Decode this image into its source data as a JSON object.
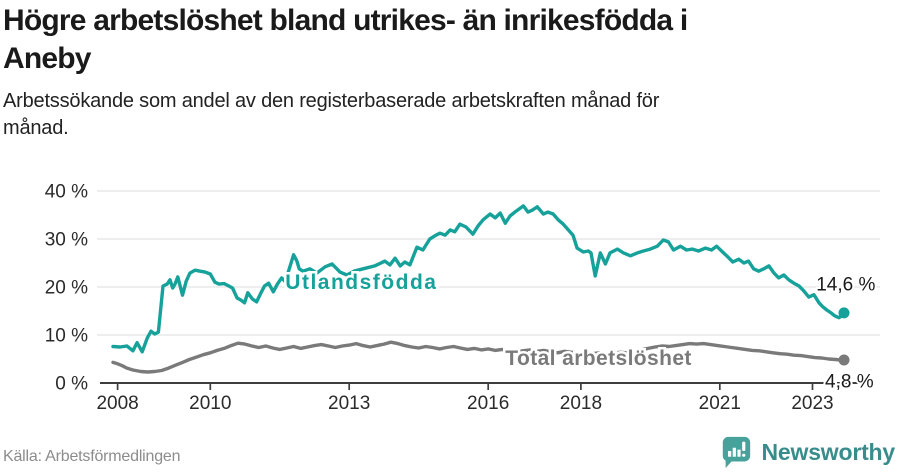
{
  "header": {
    "title_line1": "Högre arbetslöshet bland utrikes- än inrikesfödda i",
    "title_line2": "Aneby",
    "subtitle_line1": "Arbetssökande som andel av den registerbaserade arbetskraften månad för",
    "subtitle_line2": "månad."
  },
  "footer": {
    "source": "Källa: Arbetsförmedlingen",
    "brand": "Newsworthy",
    "brand_color": "#388d8c",
    "logo_icon_color": "#46a29a"
  },
  "chart_data": {
    "type": "line",
    "grid": true,
    "axis_color": "#3d3d3d",
    "grid_color": "#e4e4e4",
    "tick_label_color": "#2b2b2b",
    "end_label_color": "#1a1a1a",
    "x_axis": {
      "ticks": [
        2008,
        2010,
        2013,
        2016,
        2018,
        2021,
        2023
      ],
      "range": [
        2007.62,
        2024.0
      ]
    },
    "y_axis": {
      "ticks": [
        0,
        10,
        20,
        30,
        40
      ],
      "tick_suffix": " %",
      "range": [
        0,
        40
      ]
    },
    "series": [
      {
        "id": "utlandsfodda",
        "name": "Utlandsfödda",
        "color": "#16a29a",
        "end_value": 14.6,
        "end_label": "14,6 %",
        "label_pos": [
          2011.62,
          19.6
        ],
        "label_spacing": 1.5,
        "end_label_pos": [
          2023.08,
          19.3
        ],
        "points": [
          [
            2007.9,
            7.6
          ],
          [
            2008.05,
            7.5
          ],
          [
            2008.2,
            7.7
          ],
          [
            2008.33,
            6.7
          ],
          [
            2008.42,
            8.4
          ],
          [
            2008.53,
            6.5
          ],
          [
            2008.64,
            9.4
          ],
          [
            2008.72,
            10.8
          ],
          [
            2008.8,
            10.2
          ],
          [
            2008.88,
            10.6
          ],
          [
            2008.98,
            20.2
          ],
          [
            2009.07,
            20.6
          ],
          [
            2009.13,
            21.5
          ],
          [
            2009.19,
            19.8
          ],
          [
            2009.24,
            20.6
          ],
          [
            2009.3,
            22.1
          ],
          [
            2009.4,
            18.3
          ],
          [
            2009.48,
            21.2
          ],
          [
            2009.56,
            22.9
          ],
          [
            2009.67,
            23.5
          ],
          [
            2009.78,
            23.3
          ],
          [
            2009.89,
            23.1
          ],
          [
            2010.0,
            22.7
          ],
          [
            2010.1,
            21.0
          ],
          [
            2010.19,
            20.6
          ],
          [
            2010.3,
            20.7
          ],
          [
            2010.4,
            20.2
          ],
          [
            2010.48,
            19.8
          ],
          [
            2010.58,
            17.7
          ],
          [
            2010.66,
            17.3
          ],
          [
            2010.74,
            16.7
          ],
          [
            2010.81,
            18.8
          ],
          [
            2010.91,
            17.5
          ],
          [
            2011.0,
            16.9
          ],
          [
            2011.08,
            18.5
          ],
          [
            2011.17,
            20.2
          ],
          [
            2011.26,
            20.8
          ],
          [
            2011.36,
            19.0
          ],
          [
            2011.45,
            20.6
          ],
          [
            2011.54,
            21.9
          ],
          [
            2011.61,
            21.2
          ],
          [
            2011.69,
            23.3
          ],
          [
            2011.8,
            26.7
          ],
          [
            2011.87,
            25.4
          ],
          [
            2011.92,
            23.8
          ],
          [
            2012.0,
            23.3
          ],
          [
            2012.15,
            23.8
          ],
          [
            2012.3,
            22.9
          ],
          [
            2012.48,
            24.2
          ],
          [
            2012.63,
            24.8
          ],
          [
            2012.8,
            23.1
          ],
          [
            2012.95,
            22.5
          ],
          [
            2013.1,
            23.3
          ],
          [
            2013.3,
            23.8
          ],
          [
            2013.55,
            24.4
          ],
          [
            2013.77,
            25.4
          ],
          [
            2013.88,
            24.6
          ],
          [
            2013.99,
            26.0
          ],
          [
            2014.1,
            24.4
          ],
          [
            2014.2,
            25.2
          ],
          [
            2014.31,
            24.6
          ],
          [
            2014.46,
            28.3
          ],
          [
            2014.59,
            27.7
          ],
          [
            2014.74,
            30.0
          ],
          [
            2014.87,
            30.8
          ],
          [
            2014.96,
            31.2
          ],
          [
            2015.07,
            30.8
          ],
          [
            2015.18,
            31.9
          ],
          [
            2015.28,
            31.5
          ],
          [
            2015.39,
            33.1
          ],
          [
            2015.52,
            32.5
          ],
          [
            2015.67,
            31.0
          ],
          [
            2015.78,
            32.7
          ],
          [
            2015.89,
            34.0
          ],
          [
            2016.04,
            35.2
          ],
          [
            2016.15,
            34.4
          ],
          [
            2016.26,
            35.4
          ],
          [
            2016.37,
            33.3
          ],
          [
            2016.47,
            34.8
          ],
          [
            2016.6,
            35.8
          ],
          [
            2016.76,
            36.9
          ],
          [
            2016.86,
            35.6
          ],
          [
            2016.95,
            36.0
          ],
          [
            2017.06,
            36.7
          ],
          [
            2017.19,
            35.2
          ],
          [
            2017.29,
            35.6
          ],
          [
            2017.4,
            35.2
          ],
          [
            2017.51,
            34.0
          ],
          [
            2017.62,
            33.1
          ],
          [
            2017.73,
            31.9
          ],
          [
            2017.83,
            30.8
          ],
          [
            2017.92,
            28.1
          ],
          [
            2018.05,
            27.3
          ],
          [
            2018.16,
            27.5
          ],
          [
            2018.22,
            27.1
          ],
          [
            2018.31,
            22.3
          ],
          [
            2018.42,
            27.1
          ],
          [
            2018.53,
            24.8
          ],
          [
            2018.63,
            27.1
          ],
          [
            2018.79,
            27.9
          ],
          [
            2018.92,
            27.1
          ],
          [
            2019.07,
            26.5
          ],
          [
            2019.22,
            27.1
          ],
          [
            2019.35,
            27.5
          ],
          [
            2019.5,
            27.9
          ],
          [
            2019.65,
            28.5
          ],
          [
            2019.78,
            29.8
          ],
          [
            2019.89,
            29.4
          ],
          [
            2020.0,
            27.7
          ],
          [
            2020.15,
            28.5
          ],
          [
            2020.28,
            27.7
          ],
          [
            2020.41,
            27.9
          ],
          [
            2020.54,
            27.5
          ],
          [
            2020.69,
            28.1
          ],
          [
            2020.82,
            27.7
          ],
          [
            2020.93,
            28.5
          ],
          [
            2021.06,
            27.3
          ],
          [
            2021.17,
            26.3
          ],
          [
            2021.28,
            25.2
          ],
          [
            2021.41,
            25.8
          ],
          [
            2021.52,
            25.0
          ],
          [
            2021.62,
            25.4
          ],
          [
            2021.73,
            23.8
          ],
          [
            2021.84,
            23.3
          ],
          [
            2021.95,
            23.8
          ],
          [
            2022.06,
            24.4
          ],
          [
            2022.17,
            22.9
          ],
          [
            2022.27,
            21.9
          ],
          [
            2022.38,
            22.5
          ],
          [
            2022.49,
            21.5
          ],
          [
            2022.6,
            20.8
          ],
          [
            2022.71,
            20.2
          ],
          [
            2022.81,
            19.2
          ],
          [
            2022.92,
            17.9
          ],
          [
            2023.03,
            18.4
          ],
          [
            2023.14,
            16.7
          ],
          [
            2023.22,
            15.9
          ],
          [
            2023.31,
            15.2
          ],
          [
            2023.4,
            14.6
          ],
          [
            2023.48,
            14.0
          ],
          [
            2023.57,
            13.6
          ],
          [
            2023.63,
            14.0
          ],
          [
            2023.68,
            14.6
          ]
        ]
      },
      {
        "id": "total",
        "name": "Total arbetslöshet",
        "color": "#7a7a7a",
        "end_value": 4.8,
        "end_label": "4,8 %",
        "label_pos": [
          2016.37,
          3.7
        ],
        "label_spacing": 0.4,
        "end_label_pos": [
          2023.27,
          -0.9
        ],
        "points": [
          [
            2007.9,
            4.3
          ],
          [
            2008.0,
            4.0
          ],
          [
            2008.1,
            3.6
          ],
          [
            2008.2,
            3.1
          ],
          [
            2008.33,
            2.7
          ],
          [
            2008.5,
            2.4
          ],
          [
            2008.65,
            2.3
          ],
          [
            2008.8,
            2.4
          ],
          [
            2008.95,
            2.6
          ],
          [
            2009.1,
            3.1
          ],
          [
            2009.25,
            3.7
          ],
          [
            2009.4,
            4.3
          ],
          [
            2009.55,
            4.9
          ],
          [
            2009.7,
            5.4
          ],
          [
            2009.85,
            5.9
          ],
          [
            2010.0,
            6.3
          ],
          [
            2010.15,
            6.8
          ],
          [
            2010.3,
            7.2
          ],
          [
            2010.45,
            7.8
          ],
          [
            2010.6,
            8.3
          ],
          [
            2010.75,
            8.1
          ],
          [
            2010.9,
            7.7
          ],
          [
            2011.05,
            7.4
          ],
          [
            2011.2,
            7.7
          ],
          [
            2011.35,
            7.3
          ],
          [
            2011.5,
            7.0
          ],
          [
            2011.65,
            7.3
          ],
          [
            2011.8,
            7.6
          ],
          [
            2011.95,
            7.2
          ],
          [
            2012.1,
            7.5
          ],
          [
            2012.25,
            7.8
          ],
          [
            2012.4,
            8.0
          ],
          [
            2012.55,
            7.7
          ],
          [
            2012.7,
            7.4
          ],
          [
            2012.85,
            7.7
          ],
          [
            2013.0,
            7.9
          ],
          [
            2013.15,
            8.2
          ],
          [
            2013.3,
            7.8
          ],
          [
            2013.45,
            7.5
          ],
          [
            2013.6,
            7.8
          ],
          [
            2013.75,
            8.1
          ],
          [
            2013.9,
            8.5
          ],
          [
            2014.05,
            8.2
          ],
          [
            2014.2,
            7.8
          ],
          [
            2014.35,
            7.5
          ],
          [
            2014.5,
            7.3
          ],
          [
            2014.65,
            7.6
          ],
          [
            2014.8,
            7.4
          ],
          [
            2014.95,
            7.1
          ],
          [
            2015.1,
            7.4
          ],
          [
            2015.25,
            7.6
          ],
          [
            2015.4,
            7.3
          ],
          [
            2015.55,
            7.0
          ],
          [
            2015.7,
            7.2
          ],
          [
            2015.85,
            6.9
          ],
          [
            2016.0,
            7.1
          ],
          [
            2016.15,
            6.8
          ],
          [
            2016.3,
            7.0
          ],
          [
            2016.45,
            6.7
          ],
          [
            2016.6,
            6.5
          ],
          [
            2016.75,
            6.7
          ],
          [
            2016.9,
            6.9
          ],
          [
            2017.05,
            6.6
          ],
          [
            2017.2,
            6.8
          ],
          [
            2017.35,
            6.5
          ],
          [
            2017.5,
            6.3
          ],
          [
            2017.65,
            6.6
          ],
          [
            2017.8,
            6.4
          ],
          [
            2017.95,
            6.2
          ],
          [
            2018.1,
            6.4
          ],
          [
            2018.25,
            6.1
          ],
          [
            2018.4,
            6.3
          ],
          [
            2018.55,
            6.0
          ],
          [
            2018.7,
            6.2
          ],
          [
            2018.85,
            6.4
          ],
          [
            2019.0,
            6.3
          ],
          [
            2019.15,
            6.6
          ],
          [
            2019.3,
            6.9
          ],
          [
            2019.45,
            7.2
          ],
          [
            2019.6,
            7.5
          ],
          [
            2019.75,
            7.7
          ],
          [
            2019.9,
            7.6
          ],
          [
            2020.05,
            7.8
          ],
          [
            2020.2,
            8.0
          ],
          [
            2020.35,
            8.2
          ],
          [
            2020.5,
            8.1
          ],
          [
            2020.65,
            8.2
          ],
          [
            2020.8,
            8.0
          ],
          [
            2020.95,
            7.8
          ],
          [
            2021.1,
            7.6
          ],
          [
            2021.25,
            7.4
          ],
          [
            2021.4,
            7.2
          ],
          [
            2021.55,
            7.0
          ],
          [
            2021.7,
            6.8
          ],
          [
            2021.85,
            6.7
          ],
          [
            2022.0,
            6.5
          ],
          [
            2022.15,
            6.3
          ],
          [
            2022.3,
            6.1
          ],
          [
            2022.45,
            6.0
          ],
          [
            2022.6,
            5.8
          ],
          [
            2022.75,
            5.7
          ],
          [
            2022.9,
            5.5
          ],
          [
            2023.05,
            5.3
          ],
          [
            2023.2,
            5.2
          ],
          [
            2023.35,
            5.0
          ],
          [
            2023.5,
            4.9
          ],
          [
            2023.6,
            4.8
          ],
          [
            2023.68,
            4.8
          ]
        ]
      }
    ]
  }
}
